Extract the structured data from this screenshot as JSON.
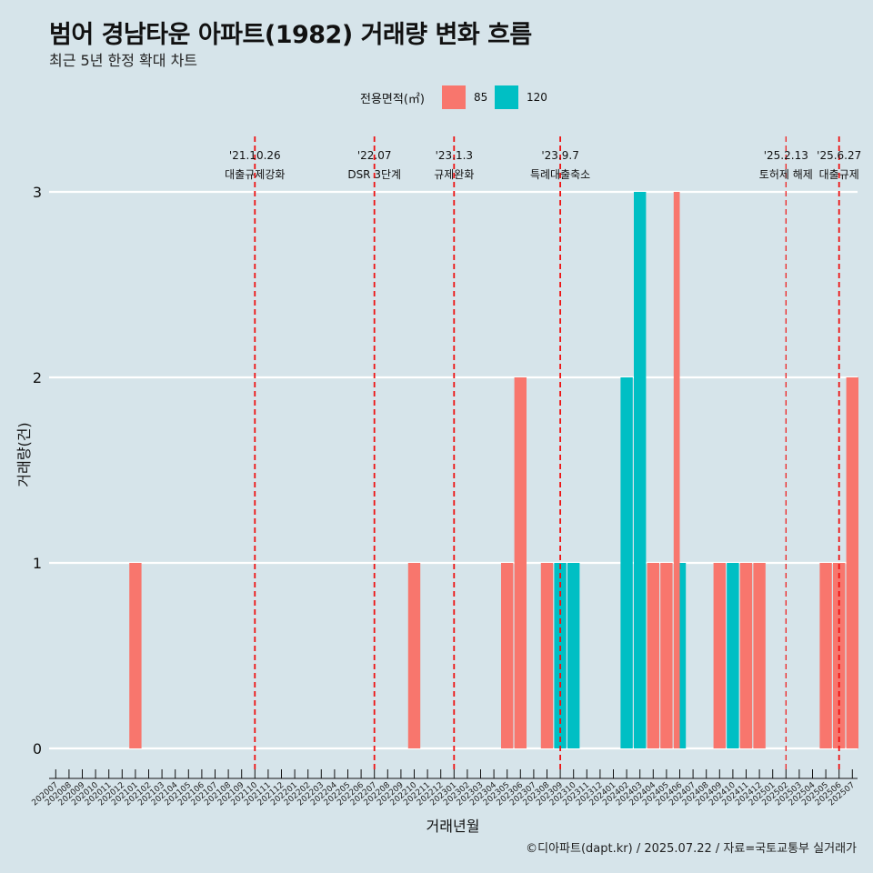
{
  "title": "범어 경남타운 아파트(1982) 거래량 변화 흐름",
  "subtitle": "최근 5년 한정 확대 차트",
  "footer": "©디아파트(dapt.kr) / 2025.07.22 / 자료=국토교통부 실거래가",
  "colors": {
    "background": "#d6e4ea",
    "s85": "#f8766d",
    "s120": "#00bfc4",
    "event_line": "#ee1111",
    "grid": "#ffffff"
  },
  "chart_data": {
    "type": "bar",
    "xlabel": "거래년월",
    "ylabel": "거래량(건)",
    "ylim": [
      0,
      3
    ],
    "yticks": [
      0,
      1,
      2,
      3
    ],
    "grid": "horizontal",
    "legend_title": "전용면적(㎡)",
    "legend_position": "top",
    "categories": [
      "202007",
      "202008",
      "202009",
      "202010",
      "202011",
      "202012",
      "202101",
      "202102",
      "202103",
      "202104",
      "202105",
      "202106",
      "202107",
      "202108",
      "202109",
      "202110",
      "202111",
      "202112",
      "202201",
      "202202",
      "202203",
      "202204",
      "202205",
      "202206",
      "202207",
      "202208",
      "202209",
      "202210",
      "202211",
      "202212",
      "202301",
      "202302",
      "202303",
      "202304",
      "202305",
      "202306",
      "202307",
      "202308",
      "202309",
      "202310",
      "202311",
      "202312",
      "202401",
      "202402",
      "202403",
      "202404",
      "202405",
      "202406",
      "202407",
      "202408",
      "202409",
      "202410",
      "202411",
      "202412",
      "202501",
      "202502",
      "202503",
      "202504",
      "202505",
      "202506",
      "202507"
    ],
    "series": [
      {
        "name": "85",
        "color": "#f8766d",
        "values": [
          0,
          0,
          0,
          0,
          0,
          0,
          1,
          0,
          0,
          0,
          0,
          0,
          0,
          0,
          0,
          0,
          0,
          0,
          0,
          0,
          0,
          0,
          0,
          0,
          0,
          0,
          0,
          1,
          0,
          0,
          0,
          0,
          0,
          0,
          1,
          2,
          0,
          1,
          0,
          0,
          0,
          0,
          0,
          0,
          0,
          1,
          1,
          3,
          0,
          0,
          1,
          0,
          1,
          1,
          0,
          0,
          0,
          0,
          1,
          1,
          2
        ]
      },
      {
        "name": "120",
        "color": "#00bfc4",
        "values": [
          0,
          0,
          0,
          0,
          0,
          0,
          0,
          0,
          0,
          0,
          0,
          0,
          0,
          0,
          0,
          0,
          0,
          0,
          0,
          0,
          0,
          0,
          0,
          0,
          0,
          0,
          0,
          0,
          0,
          0,
          0,
          0,
          0,
          0,
          0,
          0,
          0,
          0,
          1,
          1,
          0,
          0,
          0,
          2,
          3,
          0,
          0,
          1,
          0,
          0,
          0,
          1,
          0,
          0,
          0,
          0,
          0,
          0,
          0,
          0,
          0
        ]
      }
    ],
    "annotations": [
      {
        "date": "'21.10.26",
        "label": "대출규제강화",
        "x": "202110"
      },
      {
        "date": "'22.07",
        "label": "DSR 3단계",
        "x": "202207"
      },
      {
        "date": "'23.1.3",
        "label": "규제완화",
        "x": "202301"
      },
      {
        "date": "'23.9.7",
        "label": "특례대출축소",
        "x": "202309"
      },
      {
        "date": "'25.2.13",
        "label": "토허제 해제",
        "x": "202502"
      },
      {
        "date": "'25.6.27",
        "label": "대출규제",
        "x": "202506"
      }
    ]
  }
}
